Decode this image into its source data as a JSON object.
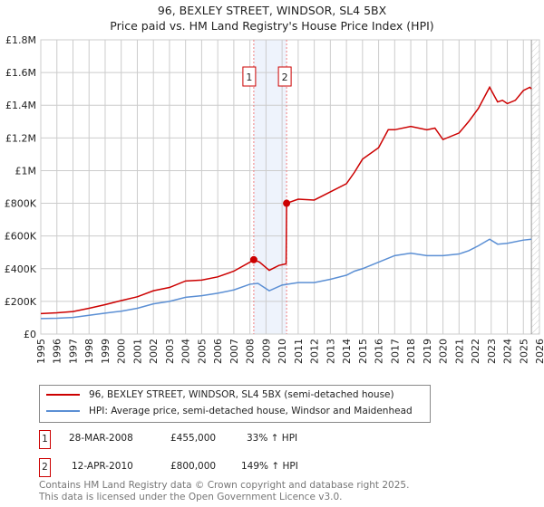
{
  "header": {
    "title": "96, BEXLEY STREET, WINDSOR, SL4 5BX",
    "subtitle": "Price paid vs. HM Land Registry's House Price Index (HPI)"
  },
  "chart_data": {
    "type": "line",
    "title": "96, BEXLEY STREET, WINDSOR, SL4 5BX",
    "subtitle": "Price paid vs. HM Land Registry's House Price Index (HPI)",
    "xlim": [
      1995,
      2026
    ],
    "ylim": [
      0,
      1800000
    ],
    "xticks": [
      "1995",
      "1996",
      "1997",
      "1998",
      "1999",
      "2000",
      "2001",
      "2002",
      "2003",
      "2004",
      "2005",
      "2006",
      "2007",
      "2008",
      "2009",
      "2010",
      "2011",
      "2012",
      "2013",
      "2014",
      "2015",
      "2016",
      "2017",
      "2018",
      "2019",
      "2020",
      "2021",
      "2022",
      "2023",
      "2024",
      "2025",
      "2026"
    ],
    "yticks": [
      {
        "v": 0,
        "label": "£0"
      },
      {
        "v": 200000,
        "label": "£200K"
      },
      {
        "v": 400000,
        "label": "£400K"
      },
      {
        "v": 600000,
        "label": "£600K"
      },
      {
        "v": 800000,
        "label": "£800K"
      },
      {
        "v": 1000000,
        "label": "£1M"
      },
      {
        "v": 1200000,
        "label": "£1.2M"
      },
      {
        "v": 1400000,
        "label": "£1.4M"
      },
      {
        "v": 1600000,
        "label": "£1.6M"
      },
      {
        "v": 1800000,
        "label": "£1.8M"
      }
    ],
    "grid": true,
    "series": [
      {
        "name": "96, BEXLEY STREET, WINDSOR, SL4 5BX (semi-detached house)",
        "color": "#cc0000",
        "points": [
          [
            1995,
            125000
          ],
          [
            1996,
            130000
          ],
          [
            1997,
            138000
          ],
          [
            1998,
            158000
          ],
          [
            1999,
            180000
          ],
          [
            2000,
            205000
          ],
          [
            2001,
            228000
          ],
          [
            2002,
            265000
          ],
          [
            2003,
            285000
          ],
          [
            2004,
            325000
          ],
          [
            2005,
            330000
          ],
          [
            2006,
            350000
          ],
          [
            2007,
            385000
          ],
          [
            2008,
            440000
          ],
          [
            2008.24,
            455000
          ],
          [
            2008.6,
            440000
          ],
          [
            2009.2,
            390000
          ],
          [
            2009.8,
            420000
          ],
          [
            2010.25,
            430000
          ],
          [
            2010.28,
            800000
          ],
          [
            2011,
            825000
          ],
          [
            2012,
            820000
          ],
          [
            2013,
            870000
          ],
          [
            2014,
            920000
          ],
          [
            2014.5,
            990000
          ],
          [
            2015,
            1070000
          ],
          [
            2016,
            1140000
          ],
          [
            2016.6,
            1250000
          ],
          [
            2017,
            1250000
          ],
          [
            2018,
            1270000
          ],
          [
            2019,
            1250000
          ],
          [
            2019.5,
            1260000
          ],
          [
            2020,
            1190000
          ],
          [
            2021,
            1230000
          ],
          [
            2021.6,
            1300000
          ],
          [
            2022.2,
            1380000
          ],
          [
            2022.9,
            1510000
          ],
          [
            2023.4,
            1420000
          ],
          [
            2023.7,
            1430000
          ],
          [
            2024,
            1410000
          ],
          [
            2024.5,
            1430000
          ],
          [
            2025,
            1490000
          ],
          [
            2025.4,
            1510000
          ],
          [
            2025.5,
            1500000
          ]
        ]
      },
      {
        "name": "HPI: Average price, semi-detached house, Windsor and Maidenhead",
        "color": "#5b8fd4",
        "points": [
          [
            1995,
            95000
          ],
          [
            1996,
            97000
          ],
          [
            1997,
            102000
          ],
          [
            1998,
            115000
          ],
          [
            1999,
            128000
          ],
          [
            2000,
            140000
          ],
          [
            2001,
            158000
          ],
          [
            2002,
            185000
          ],
          [
            2003,
            200000
          ],
          [
            2004,
            225000
          ],
          [
            2005,
            235000
          ],
          [
            2006,
            250000
          ],
          [
            2007,
            270000
          ],
          [
            2008,
            305000
          ],
          [
            2008.5,
            310000
          ],
          [
            2009.2,
            265000
          ],
          [
            2010,
            300000
          ],
          [
            2011,
            315000
          ],
          [
            2012,
            315000
          ],
          [
            2013,
            335000
          ],
          [
            2014,
            360000
          ],
          [
            2014.5,
            385000
          ],
          [
            2015,
            400000
          ],
          [
            2016,
            440000
          ],
          [
            2017,
            480000
          ],
          [
            2018,
            495000
          ],
          [
            2019,
            480000
          ],
          [
            2020,
            480000
          ],
          [
            2021,
            490000
          ],
          [
            2021.6,
            510000
          ],
          [
            2022.2,
            540000
          ],
          [
            2022.9,
            580000
          ],
          [
            2023.4,
            550000
          ],
          [
            2024,
            555000
          ],
          [
            2025,
            575000
          ],
          [
            2025.5,
            580000
          ]
        ]
      }
    ],
    "sales": [
      {
        "n": "1",
        "x": 2008.24,
        "y": 455000
      },
      {
        "n": "2",
        "x": 2010.28,
        "y": 800000
      }
    ],
    "forecast_from": 2025.5
  },
  "legend": {
    "items": [
      {
        "label": "96, BEXLEY STREET, WINDSOR, SL4 5BX (semi-detached house)",
        "color": "#cc0000"
      },
      {
        "label": "HPI: Average price, semi-detached house, Windsor and Maidenhead",
        "color": "#5b8fd4"
      }
    ]
  },
  "table": [
    {
      "n": "1",
      "date": "28-MAR-2008",
      "price": "£455,000",
      "hpi": "33% ↑ HPI"
    },
    {
      "n": "2",
      "date": "12-APR-2010",
      "price": "£800,000",
      "hpi": "149% ↑ HPI"
    }
  ],
  "footer": {
    "line1": "Contains HM Land Registry data © Crown copyright and database right 2025.",
    "line2": "This data is licensed under the Open Government Licence v3.0."
  }
}
